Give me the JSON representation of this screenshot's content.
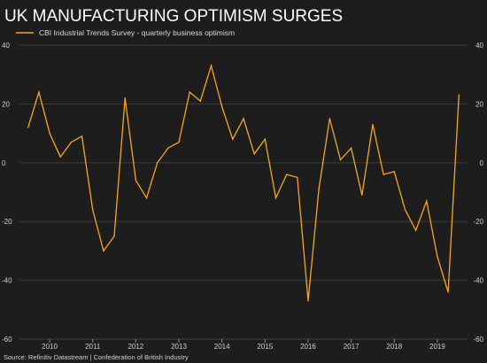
{
  "chart_data": {
    "type": "line",
    "title": "UK MANUFACTURING OPTIMISM SURGES",
    "source": "Source: Refinitiv Datastream | Confederation of British Industry",
    "series": [
      {
        "name": "CBI Industrial Trends Survey - quarterly business optimism",
        "color": "#f5a623",
        "values": [
          12,
          24,
          10,
          2,
          7,
          9,
          -16,
          -30,
          -25,
          22,
          -6,
          -12,
          0,
          5,
          7,
          24,
          21,
          33,
          19,
          8,
          15,
          3,
          8,
          -12,
          -4,
          -5,
          -47,
          -9,
          15,
          1,
          5,
          -11,
          13,
          -4,
          -3,
          -16,
          -23,
          -13,
          -32,
          -44,
          23
        ]
      }
    ],
    "x_start_year": 2009.5,
    "x_step_years": 0.25,
    "xlim": [
      2009.3,
      2019.7
    ],
    "xticks": [
      "2010",
      "2011",
      "2012",
      "2013",
      "2014",
      "2015",
      "2016",
      "2017",
      "2018",
      "2019"
    ],
    "ylim": [
      -60,
      40
    ],
    "yticks": [
      "-60",
      "-40",
      "-20",
      "0",
      "20",
      "40"
    ],
    "grid": "horizontal",
    "legend": "top-left",
    "axis_labels_both_sides": true
  }
}
